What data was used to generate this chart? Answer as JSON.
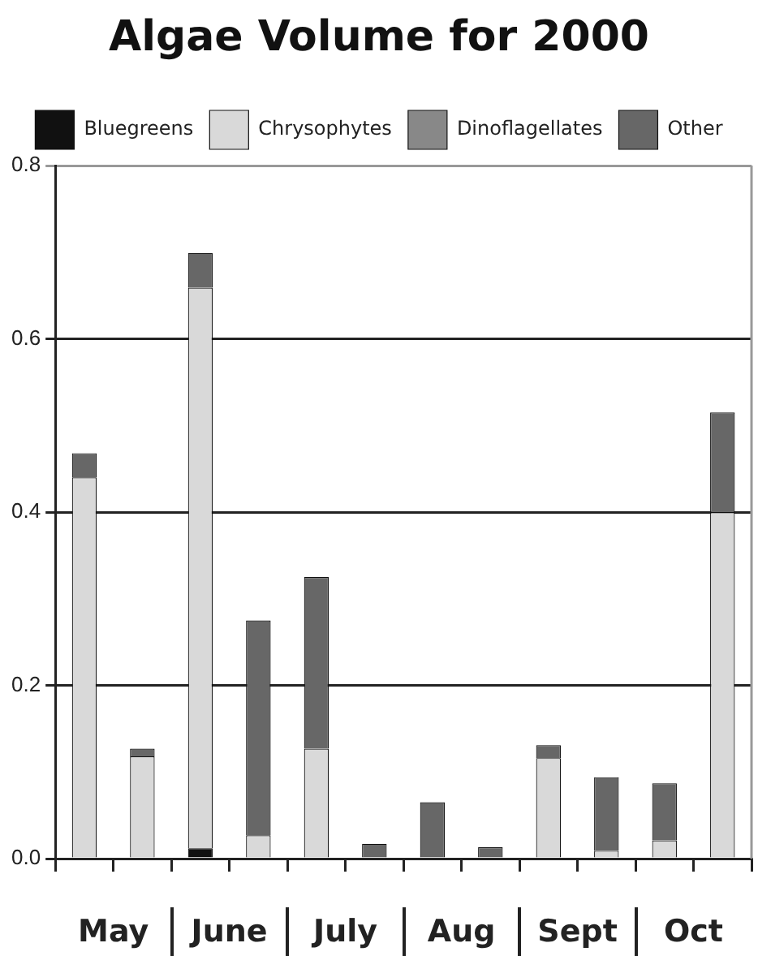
{
  "chart_data": {
    "type": "bar",
    "title": "Algae Volume for 2000",
    "stacked": true,
    "legend": "top",
    "grid": "y",
    "categories": [
      "May",
      null,
      "June",
      null,
      "July",
      null,
      "Aug",
      null,
      "Sept",
      null,
      "Oct",
      null
    ],
    "series": [
      {
        "name": "Bluegreens",
        "color": "#111111",
        "values": [
          0,
          0,
          0.012,
          0,
          0,
          0,
          0,
          0,
          0,
          0,
          0,
          0
        ]
      },
      {
        "name": "Chrysophytes",
        "color": "#d9d9d9",
        "values": [
          0.44,
          0.118,
          0.647,
          0.027,
          0.127,
          0,
          0,
          0,
          0.116,
          0.009,
          0.021,
          0.4
        ]
      },
      {
        "name": "Dinoflagellates",
        "color": "#888888",
        "values": [
          0,
          0,
          0,
          0,
          0,
          0,
          0,
          0,
          0,
          0,
          0,
          0
        ]
      },
      {
        "name": "Other",
        "color": "#676767",
        "values": [
          0.028,
          0.009,
          0.04,
          0.248,
          0.198,
          0.017,
          0.065,
          0.013,
          0.015,
          0.085,
          0.066,
          0.115
        ]
      }
    ],
    "ylim": [
      0,
      0.8
    ],
    "yticks": [
      {
        "value": 0,
        "label": "0.0"
      },
      {
        "value": 0.2,
        "label": "0.2"
      },
      {
        "value": 0.4,
        "label": "0.4"
      },
      {
        "value": 0.6,
        "label": "0.6"
      },
      {
        "value": 0.8,
        "label": "0.8"
      }
    ]
  }
}
